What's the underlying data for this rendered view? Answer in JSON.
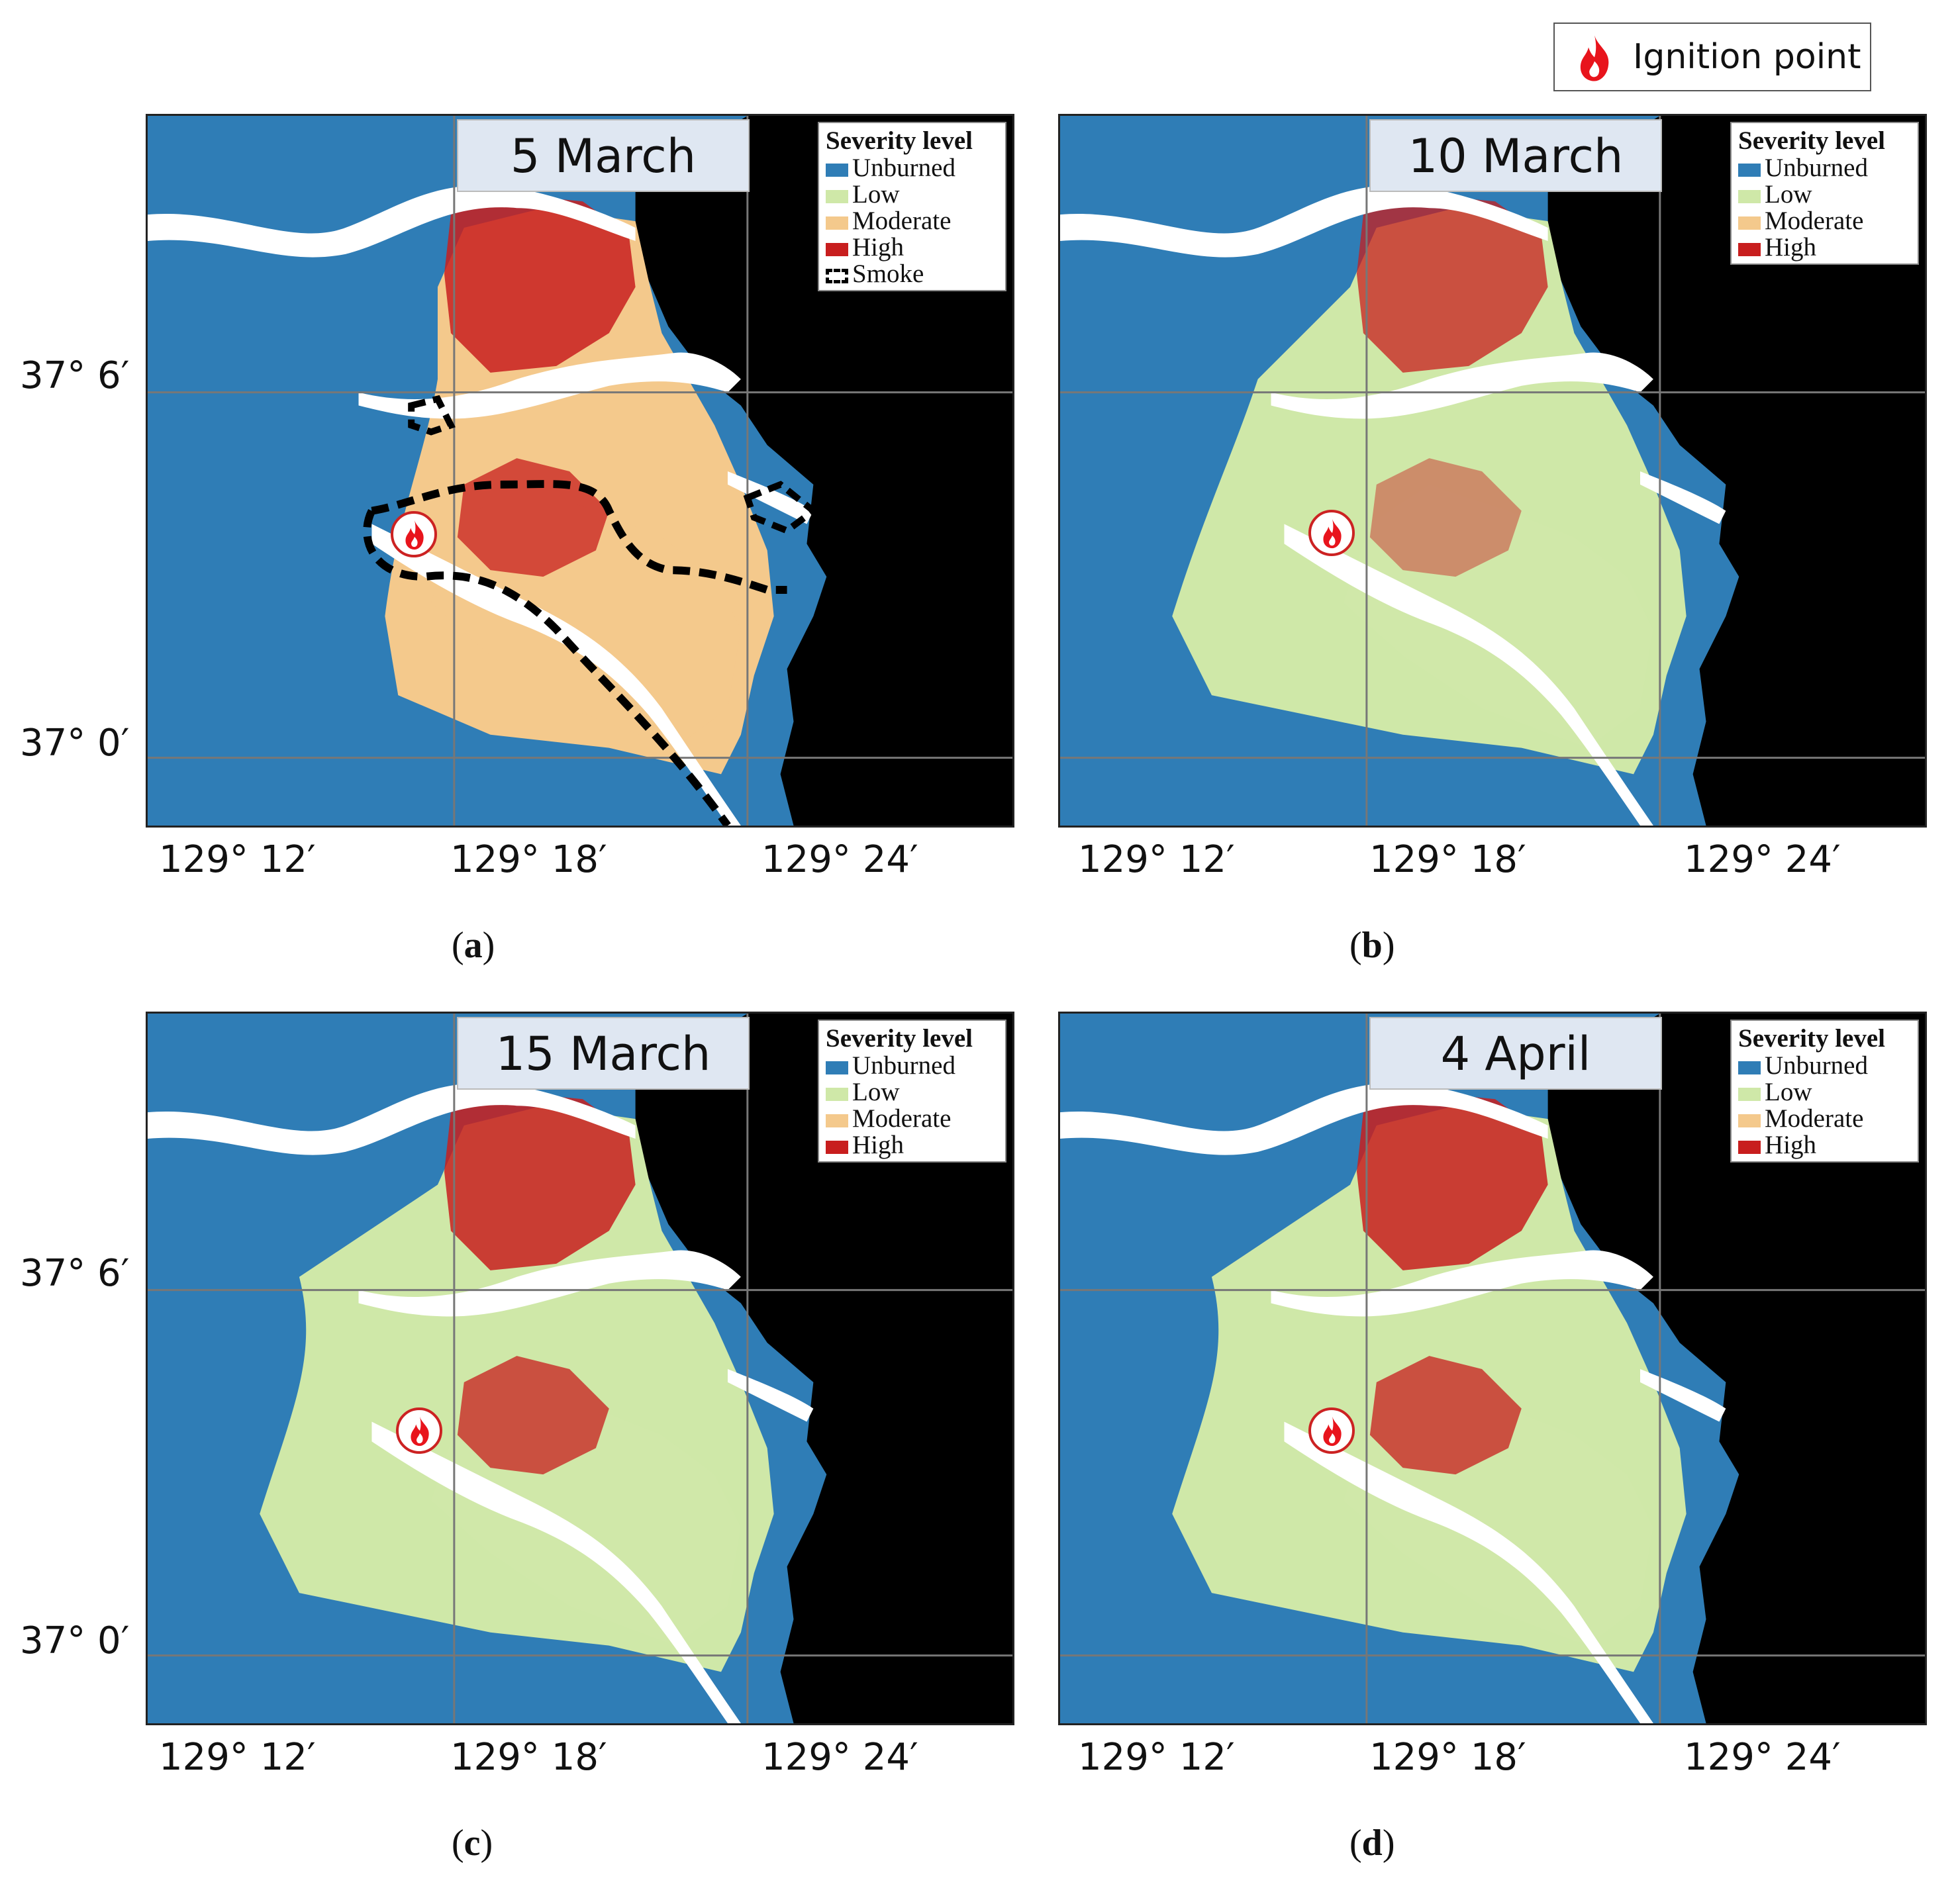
{
  "top_legend": {
    "label": "Ignition point"
  },
  "colors": {
    "unburned": "#2f7db6",
    "low": "#cfe8a8",
    "moderate": "#f4c98c",
    "high": "#c81e1e",
    "sea": "#000000",
    "river": "#ffffff"
  },
  "legend": {
    "title": "Severity level",
    "unburned": "Unburned",
    "low": "Low",
    "moderate": "Moderate",
    "high": "High",
    "smoke": "Smoke"
  },
  "axes": {
    "lat_top": "37° 6′",
    "lat_bottom": "37° 0′",
    "lon_left": "129° 12′",
    "lon_mid": "129° 18′",
    "lon_right": "129° 24′"
  },
  "panels": [
    {
      "date": "5 March",
      "caption_letter": "a"
    },
    {
      "date": "10 March",
      "caption_letter": "b"
    },
    {
      "date": "15 March",
      "caption_letter": "c"
    },
    {
      "date": "4 April",
      "caption_letter": "d"
    }
  ]
}
